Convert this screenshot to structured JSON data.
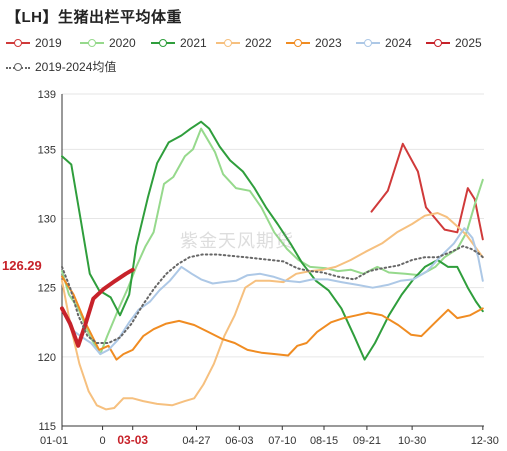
{
  "title": "【LH】生猪出栏平均体重",
  "watermark": "紫金天风期货",
  "chart_data": {
    "type": "line",
    "title": "【LH】生猪出栏平均体重",
    "xlabel": "",
    "ylabel": "",
    "ylim": [
      115,
      139
    ],
    "yticks": [
      115,
      120,
      125,
      130,
      135,
      139
    ],
    "x_range": [
      0,
      364
    ],
    "xticks": [
      {
        "label": "01-01",
        "day": 0,
        "highlight": false
      },
      {
        "label": "0",
        "day": 35,
        "highlight": false
      },
      {
        "label": "03-03",
        "day": 61,
        "highlight": true
      },
      {
        "label": "04-27",
        "day": 116,
        "highlight": false
      },
      {
        "label": "06-03",
        "day": 153,
        "highlight": false
      },
      {
        "label": "07-10",
        "day": 190,
        "highlight": false
      },
      {
        "label": "08-15",
        "day": 226,
        "highlight": false
      },
      {
        "label": "09-21",
        "day": 263,
        "highlight": false
      },
      {
        "label": "10-30",
        "day": 302,
        "highlight": false
      },
      {
        "label": "12-30",
        "day": 363,
        "highlight": false
      }
    ],
    "current_value": {
      "label": "126.29",
      "value": 126.29,
      "day": 61
    },
    "grid": "horizontal",
    "legend_position": "top",
    "series": [
      {
        "name": "2019",
        "color": "#d03a3a",
        "style": "solid",
        "width": 2,
        "points": [
          [
            267,
            130.5
          ],
          [
            281,
            132
          ],
          [
            294,
            135.4
          ],
          [
            307,
            133.4
          ],
          [
            314,
            130.8
          ],
          [
            330,
            129.2
          ],
          [
            341,
            129
          ],
          [
            350,
            132.2
          ],
          [
            356,
            131.4
          ],
          [
            363,
            128.5
          ]
        ]
      },
      {
        "name": "2020",
        "color": "#96d98c",
        "style": "solid",
        "width": 2,
        "points": [
          [
            0,
            126.2
          ],
          [
            6,
            124.5
          ],
          [
            14,
            123.5
          ],
          [
            24,
            121.5
          ],
          [
            33,
            120.2
          ],
          [
            39,
            121.5
          ],
          [
            49,
            123.5
          ],
          [
            57,
            125
          ],
          [
            64,
            126.5
          ],
          [
            72,
            128
          ],
          [
            79,
            129
          ],
          [
            88,
            132.5
          ],
          [
            96,
            133
          ],
          [
            106,
            134.5
          ],
          [
            113,
            135
          ],
          [
            120,
            136.5
          ],
          [
            125,
            135.8
          ],
          [
            132,
            134.8
          ],
          [
            139,
            133.2
          ],
          [
            150,
            132.2
          ],
          [
            162,
            132
          ],
          [
            172,
            130.8
          ],
          [
            183,
            129
          ],
          [
            194,
            127.8
          ],
          [
            204,
            127
          ],
          [
            214,
            126.5
          ],
          [
            228,
            126.4
          ],
          [
            238,
            126.2
          ],
          [
            249,
            126.3
          ],
          [
            260,
            126
          ],
          [
            272,
            126.5
          ],
          [
            282,
            126.1
          ],
          [
            296,
            126
          ],
          [
            309,
            125.9
          ],
          [
            322,
            126.5
          ],
          [
            330,
            127.2
          ],
          [
            341,
            127.8
          ],
          [
            349,
            129
          ],
          [
            356,
            131
          ],
          [
            363,
            132.8
          ]
        ]
      },
      {
        "name": "2021",
        "color": "#2f9e3c",
        "style": "solid",
        "width": 2,
        "points": [
          [
            0,
            134.5
          ],
          [
            8,
            133.9
          ],
          [
            16,
            130
          ],
          [
            24,
            126
          ],
          [
            32,
            124.8
          ],
          [
            42,
            124.3
          ],
          [
            50,
            123
          ],
          [
            58,
            124.5
          ],
          [
            64,
            128
          ],
          [
            74,
            131.5
          ],
          [
            82,
            134
          ],
          [
            92,
            135.5
          ],
          [
            103,
            136
          ],
          [
            111,
            136.5
          ],
          [
            120,
            137
          ],
          [
            127,
            136.5
          ],
          [
            136,
            135.2
          ],
          [
            145,
            134.2
          ],
          [
            156,
            133.4
          ],
          [
            166,
            132.2
          ],
          [
            176,
            130.8
          ],
          [
            186,
            129.6
          ],
          [
            197,
            128.2
          ],
          [
            207,
            126.8
          ],
          [
            219,
            125.5
          ],
          [
            230,
            124.8
          ],
          [
            241,
            123.5
          ],
          [
            252,
            121.5
          ],
          [
            261,
            119.8
          ],
          [
            270,
            121
          ],
          [
            282,
            123
          ],
          [
            293,
            124.5
          ],
          [
            303,
            125.6
          ],
          [
            313,
            126.5
          ],
          [
            324,
            127
          ],
          [
            333,
            126.5
          ],
          [
            341,
            126.5
          ],
          [
            350,
            125
          ],
          [
            357,
            124
          ],
          [
            363,
            123.3
          ]
        ]
      },
      {
        "name": "2022",
        "color": "#f6c07f",
        "style": "solid",
        "width": 2,
        "points": [
          [
            0,
            125.5
          ],
          [
            8,
            122
          ],
          [
            15,
            119.5
          ],
          [
            23,
            117.5
          ],
          [
            30,
            116.5
          ],
          [
            38,
            116.2
          ],
          [
            45,
            116.3
          ],
          [
            53,
            117
          ],
          [
            61,
            117
          ],
          [
            70,
            116.8
          ],
          [
            82,
            116.6
          ],
          [
            95,
            116.5
          ],
          [
            106,
            116.8
          ],
          [
            114,
            117
          ],
          [
            122,
            118
          ],
          [
            131,
            119.5
          ],
          [
            140,
            121.5
          ],
          [
            149,
            123
          ],
          [
            158,
            125
          ],
          [
            167,
            125.5
          ],
          [
            179,
            125.5
          ],
          [
            191,
            125.4
          ],
          [
            202,
            126
          ],
          [
            214,
            126.2
          ],
          [
            225,
            126.3
          ],
          [
            236,
            126.5
          ],
          [
            249,
            127
          ],
          [
            262,
            127.6
          ],
          [
            276,
            128.2
          ],
          [
            289,
            129
          ],
          [
            302,
            129.6
          ],
          [
            313,
            130.2
          ],
          [
            324,
            130.4
          ],
          [
            332,
            130.1
          ],
          [
            340,
            129.5
          ],
          [
            349,
            128.8
          ],
          [
            356,
            128
          ],
          [
            363,
            127.2
          ]
        ]
      },
      {
        "name": "2023",
        "color": "#f08c22",
        "style": "solid",
        "width": 2,
        "points": [
          [
            0,
            125.8
          ],
          [
            10,
            124.5
          ],
          [
            20,
            122.5
          ],
          [
            32,
            120.5
          ],
          [
            40,
            120.8
          ],
          [
            47,
            119.8
          ],
          [
            53,
            120.2
          ],
          [
            61,
            120.5
          ],
          [
            70,
            121.5
          ],
          [
            79,
            122
          ],
          [
            90,
            122.4
          ],
          [
            101,
            122.6
          ],
          [
            114,
            122.3
          ],
          [
            126,
            121.8
          ],
          [
            138,
            121.3
          ],
          [
            149,
            121
          ],
          [
            160,
            120.5
          ],
          [
            172,
            120.3
          ],
          [
            184,
            120.2
          ],
          [
            195,
            120.1
          ],
          [
            203,
            120.8
          ],
          [
            211,
            121
          ],
          [
            220,
            121.8
          ],
          [
            232,
            122.5
          ],
          [
            243,
            122.8
          ],
          [
            254,
            123
          ],
          [
            264,
            123.2
          ],
          [
            276,
            123
          ],
          [
            290,
            122.3
          ],
          [
            301,
            121.6
          ],
          [
            310,
            121.5
          ],
          [
            322,
            122.5
          ],
          [
            333,
            123.4
          ],
          [
            341,
            122.8
          ],
          [
            352,
            123
          ],
          [
            363,
            123.5
          ]
        ]
      },
      {
        "name": "2024",
        "color": "#adc8e6",
        "style": "solid",
        "width": 2,
        "points": [
          [
            0,
            123.5
          ],
          [
            8,
            122
          ],
          [
            16,
            121.5
          ],
          [
            25,
            121
          ],
          [
            33,
            120.2
          ],
          [
            40,
            120.5
          ],
          [
            48,
            121.2
          ],
          [
            58,
            122.5
          ],
          [
            66,
            123.4
          ],
          [
            76,
            124
          ],
          [
            84,
            124.8
          ],
          [
            93,
            125.5
          ],
          [
            103,
            126.5
          ],
          [
            112,
            126
          ],
          [
            120,
            125.6
          ],
          [
            130,
            125.3
          ],
          [
            139,
            125.4
          ],
          [
            150,
            125.5
          ],
          [
            160,
            125.9
          ],
          [
            171,
            126
          ],
          [
            182,
            125.8
          ],
          [
            193,
            125.5
          ],
          [
            205,
            125.4
          ],
          [
            216,
            125.6
          ],
          [
            229,
            125.6
          ],
          [
            241,
            125.4
          ],
          [
            255,
            125.2
          ],
          [
            268,
            125
          ],
          [
            281,
            125.2
          ],
          [
            292,
            125.5
          ],
          [
            303,
            125.6
          ],
          [
            315,
            126.2
          ],
          [
            326,
            127.2
          ],
          [
            338,
            128.2
          ],
          [
            347,
            129.3
          ],
          [
            354,
            128.6
          ],
          [
            359,
            127.2
          ],
          [
            363,
            125.5
          ]
        ]
      },
      {
        "name": "2025",
        "color": "#c7222a",
        "style": "solid",
        "width": 4,
        "points": [
          [
            0,
            123.5
          ],
          [
            7,
            122.4
          ],
          [
            14,
            120.8
          ],
          [
            20,
            122.3
          ],
          [
            27,
            124.2
          ],
          [
            36,
            124.9
          ],
          [
            46,
            125.5
          ],
          [
            55,
            126
          ],
          [
            61,
            126.29
          ]
        ]
      },
      {
        "name": "2019-2024均值",
        "color": "#666666",
        "style": "dotted",
        "width": 2,
        "points": [
          [
            0,
            126.5
          ],
          [
            7,
            125
          ],
          [
            14,
            123
          ],
          [
            22,
            121.5
          ],
          [
            30,
            121
          ],
          [
            40,
            121
          ],
          [
            50,
            121.4
          ],
          [
            60,
            122.4
          ],
          [
            70,
            123.8
          ],
          [
            80,
            125
          ],
          [
            90,
            126
          ],
          [
            100,
            126.7
          ],
          [
            110,
            127.2
          ],
          [
            121,
            127.4
          ],
          [
            134,
            127.4
          ],
          [
            146,
            127.3
          ],
          [
            158,
            127.2
          ],
          [
            169,
            127.1
          ],
          [
            180,
            127
          ],
          [
            191,
            126.9
          ],
          [
            203,
            126.4
          ],
          [
            214,
            126.2
          ],
          [
            225,
            126.1
          ],
          [
            238,
            125.8
          ],
          [
            252,
            125.6
          ],
          [
            265,
            126.2
          ],
          [
            276,
            126.4
          ],
          [
            290,
            126.6
          ],
          [
            302,
            127
          ],
          [
            313,
            127.2
          ],
          [
            324,
            127.2
          ],
          [
            336,
            127.6
          ],
          [
            346,
            128
          ],
          [
            353,
            127.8
          ],
          [
            359,
            127.5
          ],
          [
            363,
            127.2
          ]
        ]
      }
    ]
  }
}
